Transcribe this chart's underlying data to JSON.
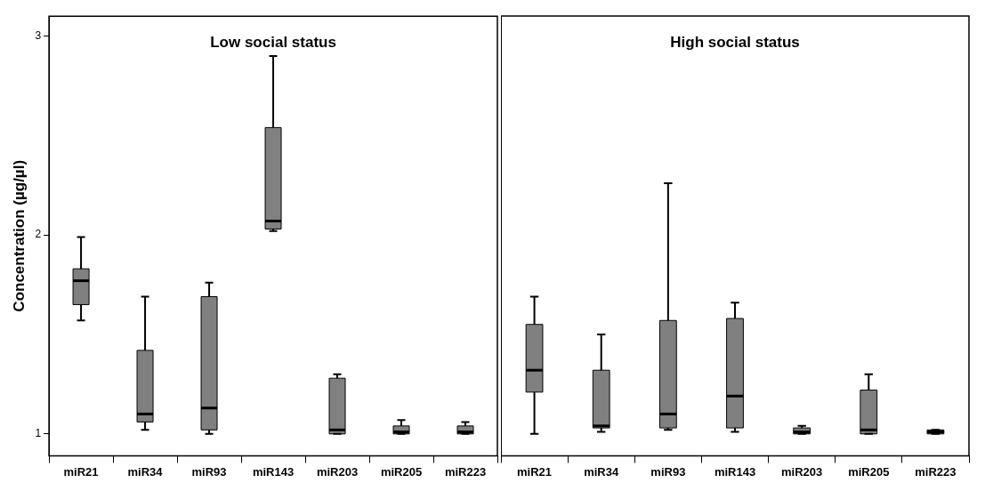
{
  "chart_data": [
    {
      "type": "box",
      "title": "Low social status",
      "ylabel": "Concentration (µg/µl)",
      "categories": [
        "miR21",
        "miR34",
        "miR93",
        "miR143",
        "miR203",
        "miR205",
        "miR223"
      ],
      "color": "#808080",
      "ylim": [
        0.89,
        3.1
      ],
      "yticks": [
        1,
        2,
        3
      ],
      "grid": false,
      "boxes": [
        {
          "low": 1.57,
          "q1": 1.65,
          "median": 1.77,
          "q3": 1.83,
          "high": 1.99
        },
        {
          "low": 1.02,
          "q1": 1.06,
          "median": 1.1,
          "q3": 1.42,
          "high": 1.69
        },
        {
          "low": 1.0,
          "q1": 1.02,
          "median": 1.13,
          "q3": 1.69,
          "high": 1.76
        },
        {
          "low": 2.02,
          "q1": 2.03,
          "median": 2.07,
          "q3": 2.54,
          "high": 2.9
        },
        {
          "low": 1.0,
          "q1": 1.0,
          "median": 1.02,
          "q3": 1.28,
          "high": 1.3
        },
        {
          "low": 1.0,
          "q1": 1.0,
          "median": 1.01,
          "q3": 1.04,
          "high": 1.07
        },
        {
          "low": 1.0,
          "q1": 1.0,
          "median": 1.01,
          "q3": 1.04,
          "high": 1.06
        }
      ]
    },
    {
      "type": "box",
      "title": "High social status",
      "categories": [
        "miR21",
        "miR34",
        "miR93",
        "miR143",
        "miR203",
        "miR205",
        "miR223"
      ],
      "color": "#808080",
      "ylim": [
        0.89,
        3.1
      ],
      "yticks": [
        1,
        2,
        3
      ],
      "grid": false,
      "tick_labels": "x",
      "boxes": [
        {
          "low": 1.0,
          "q1": 1.21,
          "median": 1.32,
          "q3": 1.55,
          "high": 1.69
        },
        {
          "low": 1.01,
          "q1": 1.03,
          "median": 1.04,
          "q3": 1.32,
          "high": 1.5
        },
        {
          "low": 1.02,
          "q1": 1.03,
          "median": 1.1,
          "q3": 1.57,
          "high": 2.26
        },
        {
          "low": 1.01,
          "q1": 1.03,
          "median": 1.19,
          "q3": 1.58,
          "high": 1.66
        },
        {
          "low": 1.0,
          "q1": 1.0,
          "median": 1.01,
          "q3": 1.03,
          "high": 1.04
        },
        {
          "low": 1.0,
          "q1": 1.0,
          "median": 1.02,
          "q3": 1.22,
          "high": 1.3
        },
        {
          "low": 1.0,
          "q1": 1.0,
          "median": 1.01,
          "q3": 1.02,
          "high": 1.02
        }
      ]
    }
  ]
}
